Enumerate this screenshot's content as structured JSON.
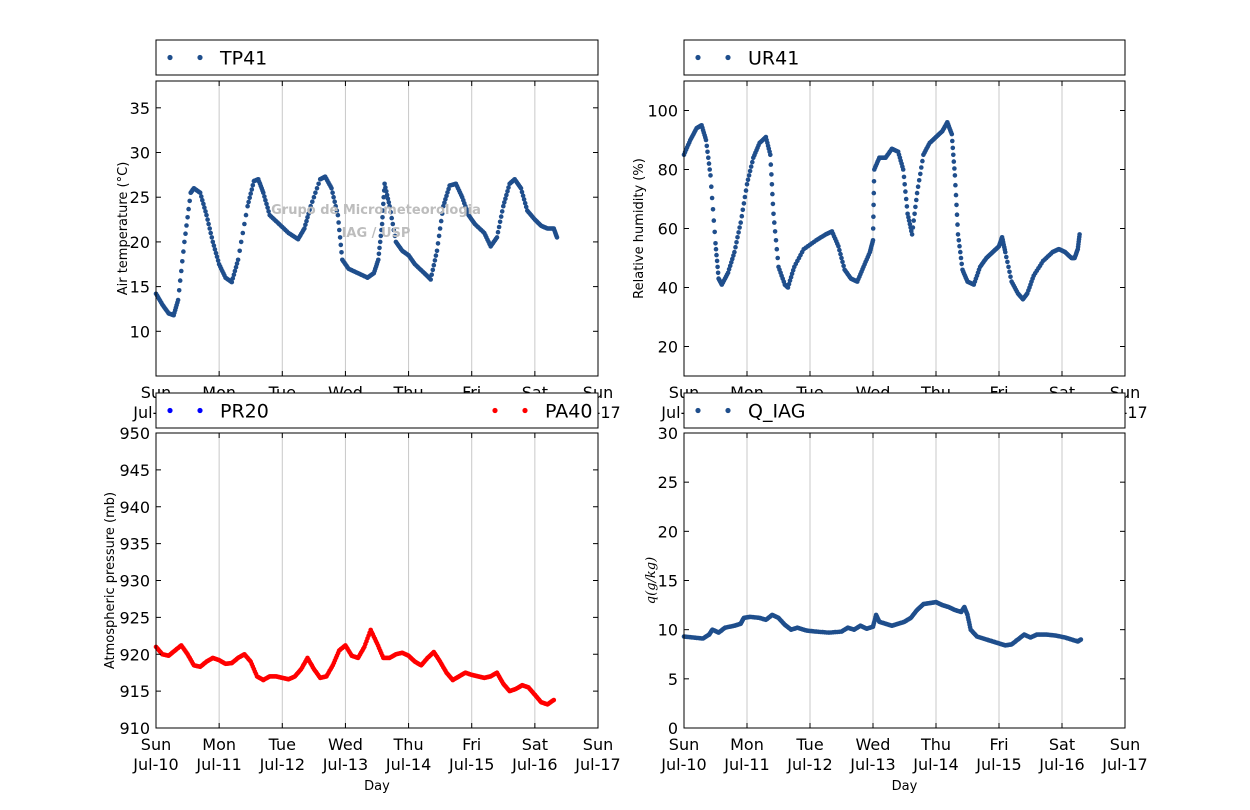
{
  "x_ticks": [
    "Sun\nJul-10",
    "Mon\nJul-11",
    "Tue\nJul-12",
    "Wed\nJul-13",
    "Thu\nJul-14",
    "Fri\nJul-15",
    "Sat\nJul-16",
    "Sun\nJul-17"
  ],
  "watermark": [
    "Grupo de Micrometeorologia",
    "IAG / USP"
  ],
  "colors": {
    "navy": "#1f4e8c",
    "blue": "#0000ff",
    "red": "#ff0000"
  },
  "chart_data": [
    {
      "id": "temp",
      "type": "scatter",
      "xlabel": "",
      "ylabel": "Air temperature (°C)",
      "xlim": [
        0,
        7
      ],
      "ylim": [
        5,
        38
      ],
      "yticks": [
        10,
        15,
        20,
        25,
        30,
        35
      ],
      "grid": "vertical",
      "legend": "top",
      "series": [
        {
          "name": "TP41",
          "color": "#1f4e8c",
          "points": [
            [
              0,
              14.2
            ],
            [
              0.1,
              13
            ],
            [
              0.2,
              12
            ],
            [
              0.28,
              11.8
            ],
            [
              0.35,
              13.5
            ],
            [
              0.45,
              20
            ],
            [
              0.55,
              25.5
            ],
            [
              0.6,
              26
            ],
            [
              0.7,
              25.5
            ],
            [
              0.8,
              23
            ],
            [
              0.9,
              20
            ],
            [
              1.0,
              17.5
            ],
            [
              1.1,
              16
            ],
            [
              1.2,
              15.5
            ],
            [
              1.3,
              18
            ],
            [
              1.45,
              24
            ],
            [
              1.55,
              26.8
            ],
            [
              1.62,
              27
            ],
            [
              1.7,
              25.5
            ],
            [
              1.8,
              23
            ],
            [
              1.95,
              22
            ],
            [
              2.1,
              21
            ],
            [
              2.25,
              20.3
            ],
            [
              2.35,
              21.5
            ],
            [
              2.45,
              24
            ],
            [
              2.6,
              27
            ],
            [
              2.68,
              27.3
            ],
            [
              2.78,
              26
            ],
            [
              2.88,
              23
            ],
            [
              2.95,
              18
            ],
            [
              3.05,
              17
            ],
            [
              3.2,
              16.5
            ],
            [
              3.35,
              16
            ],
            [
              3.45,
              16.5
            ],
            [
              3.52,
              18
            ],
            [
              3.58,
              22
            ],
            [
              3.62,
              26.5
            ],
            [
              3.7,
              24
            ],
            [
              3.8,
              20
            ],
            [
              3.9,
              19
            ],
            [
              4.0,
              18.5
            ],
            [
              4.1,
              17.5
            ],
            [
              4.25,
              16.5
            ],
            [
              4.35,
              15.8
            ],
            [
              4.45,
              19
            ],
            [
              4.55,
              24
            ],
            [
              4.65,
              26.3
            ],
            [
              4.75,
              26.5
            ],
            [
              4.85,
              25
            ],
            [
              4.95,
              23
            ],
            [
              5.05,
              22
            ],
            [
              5.2,
              21
            ],
            [
              5.3,
              19.5
            ],
            [
              5.4,
              20.5
            ],
            [
              5.5,
              24
            ],
            [
              5.6,
              26.5
            ],
            [
              5.68,
              27
            ],
            [
              5.78,
              26
            ],
            [
              5.88,
              23.5
            ],
            [
              6.0,
              22.5
            ],
            [
              6.1,
              21.8
            ],
            [
              6.2,
              21.5
            ],
            [
              6.3,
              21.5
            ],
            [
              6.35,
              20.5
            ]
          ]
        }
      ]
    },
    {
      "id": "rh",
      "type": "scatter",
      "xlabel": "",
      "ylabel": "Relative humidity (%)",
      "xlim": [
        0,
        7
      ],
      "ylim": [
        10,
        110
      ],
      "yticks": [
        20,
        40,
        60,
        80,
        100
      ],
      "grid": "vertical",
      "legend": "top",
      "series": [
        {
          "name": "UR41",
          "color": "#1f4e8c",
          "points": [
            [
              0,
              85
            ],
            [
              0.1,
              90
            ],
            [
              0.2,
              94
            ],
            [
              0.28,
              95
            ],
            [
              0.35,
              90
            ],
            [
              0.42,
              78
            ],
            [
              0.5,
              55
            ],
            [
              0.55,
              43
            ],
            [
              0.6,
              41
            ],
            [
              0.7,
              45
            ],
            [
              0.8,
              52
            ],
            [
              0.9,
              62
            ],
            [
              1.0,
              75
            ],
            [
              1.1,
              84
            ],
            [
              1.2,
              89
            ],
            [
              1.3,
              91
            ],
            [
              1.37,
              85
            ],
            [
              1.42,
              65
            ],
            [
              1.5,
              47
            ],
            [
              1.6,
              41
            ],
            [
              1.65,
              40
            ],
            [
              1.75,
              47
            ],
            [
              1.9,
              53
            ],
            [
              2.1,
              56
            ],
            [
              2.25,
              58
            ],
            [
              2.35,
              59
            ],
            [
              2.45,
              54
            ],
            [
              2.55,
              46
            ],
            [
              2.65,
              43
            ],
            [
              2.75,
              42
            ],
            [
              2.85,
              47
            ],
            [
              2.95,
              52
            ],
            [
              3.0,
              56
            ],
            [
              3.02,
              80
            ],
            [
              3.1,
              84
            ],
            [
              3.2,
              84
            ],
            [
              3.3,
              87
            ],
            [
              3.4,
              86
            ],
            [
              3.48,
              80
            ],
            [
              3.55,
              65
            ],
            [
              3.62,
              58
            ],
            [
              3.7,
              72
            ],
            [
              3.8,
              85
            ],
            [
              3.9,
              89
            ],
            [
              4.0,
              91
            ],
            [
              4.1,
              93
            ],
            [
              4.18,
              96
            ],
            [
              4.25,
              92
            ],
            [
              4.3,
              78
            ],
            [
              4.35,
              58
            ],
            [
              4.42,
              46
            ],
            [
              4.5,
              42
            ],
            [
              4.6,
              41
            ],
            [
              4.7,
              47
            ],
            [
              4.8,
              50
            ],
            [
              4.9,
              52
            ],
            [
              5.0,
              54
            ],
            [
              5.05,
              57
            ],
            [
              5.1,
              52
            ],
            [
              5.2,
              42
            ],
            [
              5.3,
              38
            ],
            [
              5.38,
              36
            ],
            [
              5.45,
              38
            ],
            [
              5.55,
              44
            ],
            [
              5.7,
              49
            ],
            [
              5.85,
              52
            ],
            [
              5.95,
              53
            ],
            [
              6.05,
              52
            ],
            [
              6.15,
              50
            ],
            [
              6.2,
              50
            ],
            [
              6.25,
              53
            ],
            [
              6.28,
              58
            ]
          ]
        }
      ]
    },
    {
      "id": "pressure",
      "type": "scatter",
      "xlabel": "Day",
      "ylabel": "Atmospheric pressure (mb)",
      "xlim": [
        0,
        7
      ],
      "ylim": [
        910,
        950
      ],
      "yticks": [
        910,
        915,
        920,
        925,
        930,
        935,
        940,
        945,
        950
      ],
      "grid": "vertical",
      "legend": "top",
      "series": [
        {
          "name": "PR20",
          "color": "#0000ff",
          "points": []
        },
        {
          "name": "PA40",
          "color": "#ff0000",
          "points": [
            [
              0,
              921
            ],
            [
              0.1,
              920
            ],
            [
              0.2,
              919.8
            ],
            [
              0.3,
              920.5
            ],
            [
              0.4,
              921.2
            ],
            [
              0.5,
              920
            ],
            [
              0.6,
              918.5
            ],
            [
              0.7,
              918.3
            ],
            [
              0.8,
              919
            ],
            [
              0.9,
              919.5
            ],
            [
              1.0,
              919.2
            ],
            [
              1.1,
              918.7
            ],
            [
              1.2,
              918.8
            ],
            [
              1.3,
              919.5
            ],
            [
              1.4,
              920
            ],
            [
              1.5,
              919
            ],
            [
              1.6,
              917
            ],
            [
              1.7,
              916.5
            ],
            [
              1.8,
              917
            ],
            [
              1.9,
              917
            ],
            [
              2.0,
              916.8
            ],
            [
              2.1,
              916.6
            ],
            [
              2.2,
              917
            ],
            [
              2.3,
              918
            ],
            [
              2.4,
              919.5
            ],
            [
              2.5,
              918
            ],
            [
              2.6,
              916.8
            ],
            [
              2.7,
              917
            ],
            [
              2.8,
              918.5
            ],
            [
              2.9,
              920.5
            ],
            [
              3.0,
              921.2
            ],
            [
              3.1,
              919.8
            ],
            [
              3.2,
              919.5
            ],
            [
              3.3,
              921
            ],
            [
              3.4,
              923.3
            ],
            [
              3.5,
              921.5
            ],
            [
              3.6,
              919.5
            ],
            [
              3.7,
              919.5
            ],
            [
              3.8,
              920
            ],
            [
              3.9,
              920.2
            ],
            [
              4.0,
              919.8
            ],
            [
              4.1,
              919
            ],
            [
              4.2,
              918.5
            ],
            [
              4.3,
              919.5
            ],
            [
              4.4,
              920.3
            ],
            [
              4.5,
              919
            ],
            [
              4.6,
              917.5
            ],
            [
              4.7,
              916.5
            ],
            [
              4.8,
              917
            ],
            [
              4.9,
              917.5
            ],
            [
              5.0,
              917.2
            ],
            [
              5.1,
              917
            ],
            [
              5.2,
              916.8
            ],
            [
              5.3,
              917
            ],
            [
              5.4,
              917.5
            ],
            [
              5.5,
              916
            ],
            [
              5.6,
              915
            ],
            [
              5.7,
              915.3
            ],
            [
              5.8,
              915.8
            ],
            [
              5.9,
              915.5
            ],
            [
              6.0,
              914.5
            ],
            [
              6.1,
              913.5
            ],
            [
              6.2,
              913.2
            ],
            [
              6.3,
              913.8
            ]
          ]
        }
      ]
    },
    {
      "id": "q",
      "type": "scatter",
      "xlabel": "Day",
      "ylabel": "q(g/kg)",
      "xlim": [
        0,
        7
      ],
      "ylim": [
        0,
        30
      ],
      "yticks": [
        0,
        5,
        10,
        15,
        20,
        25,
        30
      ],
      "grid": "vertical",
      "legend": "top",
      "series": [
        {
          "name": "Q_IAG",
          "color": "#1f4e8c",
          "points": [
            [
              0,
              9.3
            ],
            [
              0.15,
              9.2
            ],
            [
              0.3,
              9.1
            ],
            [
              0.4,
              9.5
            ],
            [
              0.45,
              10
            ],
            [
              0.55,
              9.7
            ],
            [
              0.65,
              10.2
            ],
            [
              0.8,
              10.4
            ],
            [
              0.9,
              10.6
            ],
            [
              0.95,
              11.2
            ],
            [
              1.05,
              11.3
            ],
            [
              1.2,
              11.2
            ],
            [
              1.3,
              11
            ],
            [
              1.4,
              11.5
            ],
            [
              1.5,
              11.2
            ],
            [
              1.6,
              10.5
            ],
            [
              1.7,
              10
            ],
            [
              1.8,
              10.2
            ],
            [
              1.95,
              9.9
            ],
            [
              2.1,
              9.8
            ],
            [
              2.3,
              9.7
            ],
            [
              2.5,
              9.8
            ],
            [
              2.6,
              10.2
            ],
            [
              2.7,
              10
            ],
            [
              2.8,
              10.4
            ],
            [
              2.9,
              10.1
            ],
            [
              3.0,
              10.3
            ],
            [
              3.05,
              11.5
            ],
            [
              3.1,
              10.8
            ],
            [
              3.2,
              10.6
            ],
            [
              3.3,
              10.4
            ],
            [
              3.4,
              10.6
            ],
            [
              3.5,
              10.8
            ],
            [
              3.6,
              11.2
            ],
            [
              3.7,
              12
            ],
            [
              3.8,
              12.6
            ],
            [
              3.9,
              12.7
            ],
            [
              4.0,
              12.8
            ],
            [
              4.1,
              12.5
            ],
            [
              4.2,
              12.3
            ],
            [
              4.3,
              12
            ],
            [
              4.4,
              11.8
            ],
            [
              4.45,
              12.3
            ],
            [
              4.5,
              11.5
            ],
            [
              4.55,
              10
            ],
            [
              4.65,
              9.3
            ],
            [
              4.8,
              9
            ],
            [
              4.9,
              8.8
            ],
            [
              5.0,
              8.6
            ],
            [
              5.1,
              8.4
            ],
            [
              5.2,
              8.5
            ],
            [
              5.3,
              9
            ],
            [
              5.4,
              9.5
            ],
            [
              5.5,
              9.2
            ],
            [
              5.6,
              9.5
            ],
            [
              5.75,
              9.5
            ],
            [
              5.9,
              9.4
            ],
            [
              6.05,
              9.2
            ],
            [
              6.15,
              9
            ],
            [
              6.25,
              8.8
            ],
            [
              6.3,
              9
            ]
          ]
        }
      ]
    }
  ]
}
